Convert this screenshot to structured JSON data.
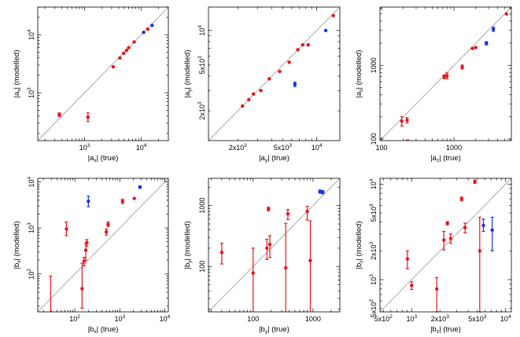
{
  "colors": {
    "red": "#e8141c",
    "blue": "#1433e0",
    "diag": "#aaaaaa",
    "axis": "#000000"
  },
  "chart_data": [
    {
      "type": "scatter",
      "title": "",
      "xlabel_base": "|a",
      "xlabel_sub": "x",
      "xlabel_tail": "| (true)",
      "ylabel_base": "|a",
      "ylabel_sub": "x",
      "ylabel_tail": "| (modelled)",
      "log_x": true,
      "log_y": true,
      "xlim": [
        150,
        30000
      ],
      "ylim": [
        150,
        30000
      ],
      "xticks": [
        {
          "v": 1000,
          "b": "10",
          "e": "3"
        },
        {
          "v": 10000,
          "b": "10",
          "e": "4"
        }
      ],
      "yticks": [
        {
          "v": 1000,
          "b": "10",
          "e": "3"
        },
        {
          "v": 10000,
          "b": "10",
          "e": "4"
        }
      ],
      "series": [
        {
          "color": "red",
          "points": [
            {
              "x": 360,
              "y": 420,
              "lo": 390,
              "hi": 450
            },
            {
              "x": 1150,
              "y": 380,
              "lo": 320,
              "hi": 450
            },
            {
              "x": 3200,
              "y": 2800
            },
            {
              "x": 4200,
              "y": 4000
            },
            {
              "x": 4900,
              "y": 4800
            },
            {
              "x": 5500,
              "y": 5400
            },
            {
              "x": 6000,
              "y": 6000
            },
            {
              "x": 7500,
              "y": 7500
            },
            {
              "x": 13000,
              "y": 12500
            }
          ]
        },
        {
          "color": "blue",
          "points": [
            {
              "x": 11000,
              "y": 11000
            },
            {
              "x": 15500,
              "y": 14500
            }
          ]
        }
      ]
    },
    {
      "type": "scatter",
      "title": "",
      "xlabel_base": "|a",
      "xlabel_sub": "y",
      "xlabel_tail": "| (true)",
      "ylabel_base": "|a",
      "ylabel_sub": "y",
      "ylabel_tail": "| (modelled)",
      "log_x": true,
      "log_y": true,
      "xlim": [
        1100,
        16000
      ],
      "ylim": [
        1100,
        16000
      ],
      "xticks": [
        {
          "v": 2000,
          "b": "2x10",
          "e": "3"
        },
        {
          "v": 5000,
          "b": "5x10",
          "e": "3"
        },
        {
          "v": 10000,
          "b": "10",
          "e": "4"
        }
      ],
      "yticks": [
        {
          "v": 2000,
          "b": "2x10",
          "e": "3"
        },
        {
          "v": 5000,
          "b": "5x10",
          "e": "3"
        },
        {
          "v": 10000,
          "b": "10",
          "e": "4"
        }
      ],
      "series": [
        {
          "color": "red",
          "points": [
            {
              "x": 2200,
              "y": 2200
            },
            {
              "x": 2500,
              "y": 2500
            },
            {
              "x": 2750,
              "y": 2800
            },
            {
              "x": 3200,
              "y": 3000
            },
            {
              "x": 3800,
              "y": 3800
            },
            {
              "x": 4700,
              "y": 4400
            },
            {
              "x": 5700,
              "y": 5300
            },
            {
              "x": 6800,
              "y": 6800
            },
            {
              "x": 7500,
              "y": 7500
            },
            {
              "x": 8400,
              "y": 7500
            },
            {
              "x": 14000,
              "y": 13500
            }
          ]
        },
        {
          "color": "blue",
          "points": [
            {
              "x": 6400,
              "y": 3400,
              "lo": 3250,
              "hi": 3550
            },
            {
              "x": 12000,
              "y": 10000
            }
          ]
        }
      ]
    },
    {
      "type": "scatter",
      "title": "",
      "xlabel_base": "|a",
      "xlabel_sub": "z",
      "xlabel_tail": "| (true)",
      "ylabel_base": "|a",
      "ylabel_sub": "z",
      "ylabel_tail": "| (modelled)",
      "log_x": true,
      "log_y": true,
      "xlim": [
        95,
        6200
      ],
      "ylim": [
        95,
        6200
      ],
      "xticks": [
        {
          "v": 100,
          "b": "100",
          "e": ""
        },
        {
          "v": 1000,
          "b": "1000",
          "e": ""
        }
      ],
      "yticks": [
        {
          "v": 100,
          "b": "100",
          "e": ""
        },
        {
          "v": 1000,
          "b": "1000",
          "e": ""
        }
      ],
      "series": [
        {
          "color": "red",
          "points": [
            {
              "x": 190,
              "y": 175,
              "lo": 150,
              "hi": 200
            },
            {
              "x": 225,
              "y": 180,
              "lo": 165,
              "hi": 195
            },
            {
              "x": 730,
              "y": 700,
              "lo": 660,
              "hi": 740
            },
            {
              "x": 800,
              "y": 720,
              "lo": 660,
              "hi": 790
            },
            {
              "x": 1300,
              "y": 950,
              "lo": 890,
              "hi": 1010
            },
            {
              "x": 1800,
              "y": 1700
            },
            {
              "x": 2000,
              "y": 1750
            },
            {
              "x": 5300,
              "y": 5000
            },
            {
              "x": 230,
              "y": 85,
              "lo": 80,
              "hi": 97
            }
          ]
        },
        {
          "color": "blue",
          "points": [
            {
              "x": 2800,
              "y": 2000,
              "lo": 1900,
              "hi": 2100
            },
            {
              "x": 3500,
              "y": 3100,
              "lo": 2900,
              "hi": 3300
            }
          ]
        }
      ]
    },
    {
      "type": "scatter",
      "title": "",
      "xlabel_base": "|b",
      "xlabel_sub": "x",
      "xlabel_tail": "| (true)",
      "ylabel_base": "|b",
      "ylabel_sub": "x",
      "ylabel_tail": "| (modelled)",
      "log_x": true,
      "log_y": true,
      "xlim": [
        15,
        12000
      ],
      "ylim": [
        15,
        12000
      ],
      "xticks": [
        {
          "v": 100,
          "b": "10",
          "e": "2"
        },
        {
          "v": 1000,
          "b": "10",
          "e": "3"
        },
        {
          "v": 10000,
          "b": "10",
          "e": "4"
        }
      ],
      "yticks": [
        {
          "v": 100,
          "b": "10",
          "e": "2"
        },
        {
          "v": 1000,
          "b": "10",
          "e": "3"
        },
        {
          "v": 10000,
          "b": "10",
          "e": "4"
        }
      ],
      "series": [
        {
          "color": "red",
          "points": [
            {
              "x": 29,
              "y": 12,
              "lo": 10,
              "hi": 90
            },
            {
              "x": 65,
              "y": 950,
              "lo": 680,
              "hi": 1350
            },
            {
              "x": 145,
              "y": 48,
              "lo": 18,
              "hi": 170
            },
            {
              "x": 160,
              "y": 190,
              "lo": 150,
              "hi": 230
            },
            {
              "x": 175,
              "y": 330,
              "lo": 200,
              "hi": 450
            },
            {
              "x": 185,
              "y": 480,
              "lo": 400,
              "hi": 560
            },
            {
              "x": 500,
              "y": 820,
              "lo": 700,
              "hi": 950
            },
            {
              "x": 550,
              "y": 1200,
              "lo": 1080,
              "hi": 1350
            },
            {
              "x": 1150,
              "y": 3800,
              "lo": 3400,
              "hi": 4200
            },
            {
              "x": 2100,
              "y": 4400
            }
          ]
        },
        {
          "color": "blue",
          "points": [
            {
              "x": 200,
              "y": 3800,
              "lo": 2900,
              "hi": 4900
            },
            {
              "x": 2800,
              "y": 7700,
              "lo": 7300,
              "hi": 8200
            }
          ]
        }
      ]
    },
    {
      "type": "scatter",
      "title": "",
      "xlabel_base": "|b",
      "xlabel_sub": "y",
      "xlabel_tail": "| (true)",
      "ylabel_base": "|b",
      "ylabel_sub": "y",
      "ylabel_tail": "| (modelled)",
      "log_x": true,
      "log_y": true,
      "xlim": [
        18,
        2800
      ],
      "ylim": [
        18,
        2800
      ],
      "xticks": [
        {
          "v": 100,
          "b": "100",
          "e": ""
        },
        {
          "v": 1000,
          "b": "1000",
          "e": ""
        }
      ],
      "yticks": [
        {
          "v": 100,
          "b": "100",
          "e": ""
        },
        {
          "v": 1000,
          "b": "1000",
          "e": ""
        }
      ],
      "series": [
        {
          "color": "red",
          "points": [
            {
              "x": 30,
              "y": 170,
              "lo": 110,
              "hi": 240
            },
            {
              "x": 100,
              "y": 78,
              "lo": 15,
              "hi": 200
            },
            {
              "x": 170,
              "y": 200,
              "lo": 130,
              "hi": 280
            },
            {
              "x": 180,
              "y": 880,
              "lo": 820,
              "hi": 940
            },
            {
              "x": 190,
              "y": 230,
              "lo": 140,
              "hi": 320
            },
            {
              "x": 350,
              "y": 95,
              "lo": 15,
              "hi": 510
            },
            {
              "x": 380,
              "y": 730,
              "lo": 590,
              "hi": 860
            },
            {
              "x": 800,
              "y": 800,
              "lo": 580,
              "hi": 970
            },
            {
              "x": 900,
              "y": 125,
              "lo": 15,
              "hi": 560
            }
          ]
        },
        {
          "color": "blue",
          "points": [
            {
              "x": 1300,
              "y": 1700,
              "lo": 1600,
              "hi": 1800
            },
            {
              "x": 1450,
              "y": 1660,
              "lo": 1560,
              "hi": 1760
            }
          ]
        }
      ]
    },
    {
      "type": "scatter",
      "title": "",
      "xlabel_base": "|b",
      "xlabel_sub": "z",
      "xlabel_tail": "| (true)",
      "ylabel_base": "|b",
      "ylabel_sub": "z",
      "ylabel_tail": "| (modelled)",
      "log_x": true,
      "log_y": true,
      "xlim": [
        460,
        11500
      ],
      "ylim": [
        460,
        11500
      ],
      "xticks": [
        {
          "v": 500,
          "b": "5x10",
          "e": "2"
        },
        {
          "v": 1000,
          "b": "10",
          "e": "3"
        },
        {
          "v": 2000,
          "b": "2x10",
          "e": "3"
        },
        {
          "v": 5000,
          "b": "5x10",
          "e": "3"
        },
        {
          "v": 10000,
          "b": "10",
          "e": "4"
        }
      ],
      "yticks": [
        {
          "v": 500,
          "b": "5x10",
          "e": "2"
        },
        {
          "v": 1000,
          "b": "10",
          "e": "3"
        },
        {
          "v": 2000,
          "b": "2x10",
          "e": "3"
        },
        {
          "v": 5000,
          "b": "5x10",
          "e": "3"
        },
        {
          "v": 10000,
          "b": "10",
          "e": "4"
        }
      ],
      "series": [
        {
          "color": "red",
          "points": [
            {
              "x": 900,
              "y": 1650,
              "lo": 1300,
              "hi": 2000
            },
            {
              "x": 1000,
              "y": 870,
              "lo": 790,
              "hi": 950
            },
            {
              "x": 1850,
              "y": 800,
              "lo": 460,
              "hi": 1050
            },
            {
              "x": 2200,
              "y": 2600,
              "lo": 2050,
              "hi": 3200
            },
            {
              "x": 2400,
              "y": 3900,
              "lo": 3750,
              "hi": 4050
            },
            {
              "x": 2600,
              "y": 2700,
              "lo": 2400,
              "hi": 3000
            },
            {
              "x": 3400,
              "y": 7000,
              "lo": 6700,
              "hi": 7300
            },
            {
              "x": 3700,
              "y": 3500,
              "lo": 3100,
              "hi": 3900
            },
            {
              "x": 4700,
              "y": 10600,
              "lo": 10200,
              "hi": 11000
            },
            {
              "x": 5300,
              "y": 2000,
              "lo": 460,
              "hi": 4500
            }
          ]
        },
        {
          "color": "blue",
          "points": [
            {
              "x": 5800,
              "y": 3700,
              "lo": 3200,
              "hi": 4300
            },
            {
              "x": 7200,
              "y": 3300,
              "lo": 2000,
              "hi": 4500
            }
          ]
        }
      ]
    }
  ]
}
